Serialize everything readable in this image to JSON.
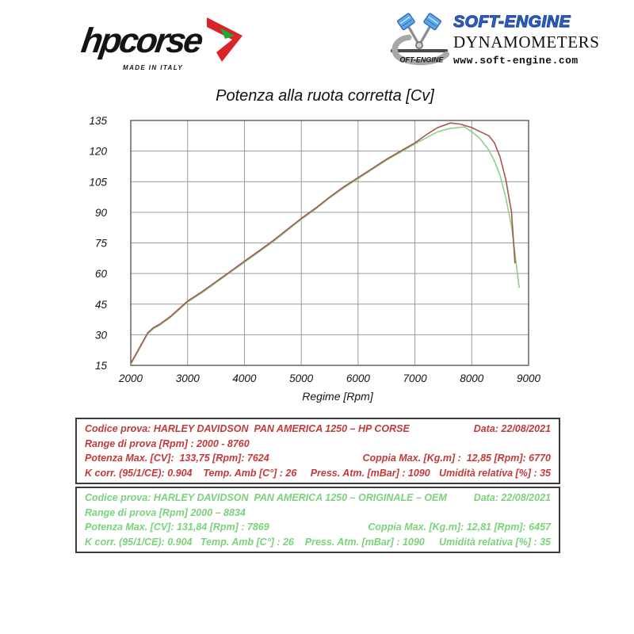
{
  "header": {
    "hpcorse": {
      "brand": "hpcorse",
      "tagline": "MADE IN ITALY",
      "arrow_red": "#d8232a",
      "arrow_green": "#1fa638",
      "text_color": "#141414"
    },
    "softengine": {
      "brand": "SOFT-ENGINE",
      "icon_text": "OFT-ENGINE",
      "line1": "DYNAMOMETERS",
      "line2": "www.soft-engine.com",
      "brand_blue": "#2b63cf",
      "piston_blue": "#5aa7e8"
    }
  },
  "chart_data": {
    "type": "line",
    "title": "Potenza alla ruota corretta [Cv]",
    "xlabel": "Regime [Rpm]",
    "ylabel": "",
    "xlim": [
      2000,
      9000
    ],
    "ylim": [
      15,
      135
    ],
    "x_ticks": [
      2000,
      3000,
      4000,
      5000,
      6000,
      7000,
      8000,
      9000
    ],
    "y_ticks": [
      15,
      30,
      45,
      60,
      75,
      90,
      105,
      120,
      135
    ],
    "grid": true,
    "legend_position": "none",
    "grid_color": "#9a9a9a",
    "border_color": "#5a5a5a",
    "series": [
      {
        "name": "HP CORSE",
        "color": "#a85353",
        "x": [
          2000,
          2100,
          2200,
          2300,
          2400,
          2500,
          2700,
          3000,
          3250,
          3500,
          3750,
          4000,
          4250,
          4500,
          4750,
          5000,
          5250,
          5500,
          5750,
          6000,
          6250,
          6500,
          6750,
          7000,
          7200,
          7400,
          7624,
          7800,
          8000,
          8150,
          8300,
          8400,
          8500,
          8600,
          8700,
          8760
        ],
        "y": [
          16,
          21,
          26,
          31,
          33.5,
          35,
          39,
          46.5,
          51,
          56,
          61,
          66,
          71,
          76,
          81.5,
          87,
          92,
          97.5,
          102.5,
          107,
          111.5,
          116,
          120,
          124,
          128,
          131.5,
          133.75,
          133.2,
          131.5,
          129.5,
          127.5,
          124,
          117,
          106,
          90,
          65
        ]
      },
      {
        "name": "ORIGINALE - OEM",
        "color": "#8ad28a",
        "x": [
          2000,
          2100,
          2200,
          2300,
          2400,
          2500,
          2700,
          3000,
          3250,
          3500,
          3750,
          4000,
          4250,
          4500,
          4750,
          5000,
          5250,
          5500,
          5750,
          6000,
          6250,
          6500,
          6750,
          7000,
          7200,
          7400,
          7600,
          7869,
          8000,
          8150,
          8300,
          8400,
          8500,
          8600,
          8700,
          8760,
          8834
        ],
        "y": [
          15.5,
          20.5,
          25.5,
          30.5,
          33,
          34.5,
          38.5,
          46,
          50.5,
          55.5,
          60.5,
          65.5,
          70.5,
          75.5,
          81,
          86.5,
          91.5,
          97,
          102,
          106.5,
          111,
          115.5,
          119.5,
          123.5,
          126.5,
          129.5,
          131,
          131.84,
          129.5,
          126,
          120.5,
          115,
          108,
          97,
          83,
          70,
          53
        ]
      }
    ]
  },
  "info_boxes": [
    {
      "id": "hpcorse",
      "text_color": "#c23a3a",
      "rows": [
        {
          "left": "Codice prova: HARLEY DAVIDSON  PAN AMERICA 1250 – HP CORSE",
          "right": "Data: 22/08/2021"
        },
        {
          "left": "Range di prova [Rpm] : 2000 - 8760",
          "right": ""
        },
        {
          "left": "Potenza Max. [CV]:  133,75 [Rpm]: 7624",
          "right": "Coppia Max. [Kg.m] :  12,85 [Rpm]: 6770"
        },
        {
          "left": "K corr. (95/1/CE): 0.904    Temp. Amb [C°] : 26     Press. Atm. [mBar] : 1090",
          "right": "Umidità relativa [%] : 35"
        }
      ]
    },
    {
      "id": "oem",
      "text_color": "#79d379",
      "rows": [
        {
          "left": "Codice prova: HARLEY DAVIDSON  PAN AMERICA 1250 – ORIGINALE – OEM",
          "right": "Data: 22/08/2021"
        },
        {
          "left": "Range di prova [Rpm] 2000 – 8834",
          "right": ""
        },
        {
          "left": "Potenza Max. [CV]: 131,84 [Rpm] : 7869",
          "right": "Coppia Max. [Kg.m]: 12,81 [Rpm]: 6457"
        },
        {
          "left": "K corr. (95/1/CE): 0.904   Temp. Amb [C°] : 26    Press. Atm. [mBar] : 1090",
          "right": "Umidità relativa [%] : 35"
        }
      ]
    }
  ]
}
